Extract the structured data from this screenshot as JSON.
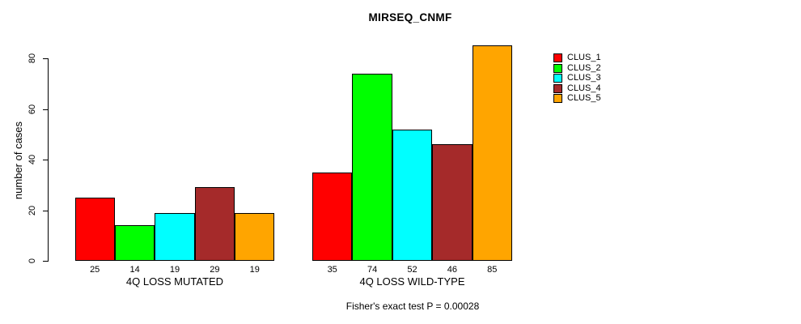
{
  "chart_data": {
    "type": "bar",
    "title": "MIRSEQ_CNMF",
    "ylabel": "number of cases",
    "xlabel": "",
    "categories": [
      "4Q LOSS MUTATED",
      "4Q LOSS WILD-TYPE"
    ],
    "series": [
      {
        "name": "CLUS_1",
        "color": "#FF0000",
        "values": [
          25,
          35
        ]
      },
      {
        "name": "CLUS_2",
        "color": "#00FF00",
        "values": [
          14,
          74
        ]
      },
      {
        "name": "CLUS_3",
        "color": "#00FFFF",
        "values": [
          19,
          52
        ]
      },
      {
        "name": "CLUS_4",
        "color": "#A52A2A",
        "values": [
          29,
          46
        ]
      },
      {
        "name": "CLUS_5",
        "color": "#FFA500",
        "values": [
          19,
          85
        ]
      }
    ],
    "yticks": [
      0,
      20,
      40,
      60,
      80
    ],
    "ylim": [
      0,
      85
    ],
    "grid": false,
    "legend_position": "right",
    "bar_value_labels_shown": true,
    "annotation": "Fisher's exact test P = 0.00028"
  }
}
